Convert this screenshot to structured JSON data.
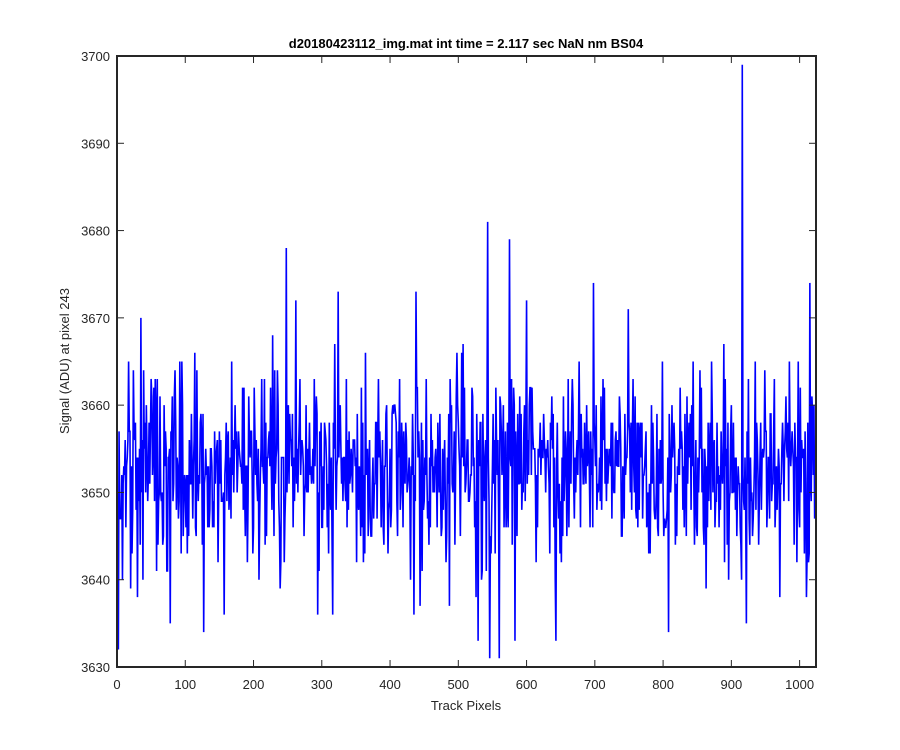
{
  "chart_data": {
    "type": "line",
    "title": "d20180423112_img.mat int time = 2.117 sec  NaN nm BS04",
    "xlabel": "Track Pixels",
    "ylabel": "Signal (ADU) at pixel 243",
    "xlim": [
      0,
      1024
    ],
    "ylim": [
      3630,
      3700
    ],
    "xticks": [
      0,
      100,
      200,
      300,
      400,
      500,
      600,
      700,
      800,
      900,
      1000
    ],
    "yticks": [
      3630,
      3640,
      3650,
      3660,
      3670,
      3680,
      3690,
      3700
    ],
    "grid": false,
    "legend": "none",
    "series": [
      {
        "color": "#0000ff",
        "x_start": 1,
        "x_step": 1,
        "n_points": 1024,
        "mean": 3653,
        "std": 5.5,
        "min": 3631,
        "max": 3699,
        "notable_points": [
          {
            "x": 2,
            "y": 3632
          },
          {
            "x": 30,
            "y": 3638
          },
          {
            "x": 35,
            "y": 3670
          },
          {
            "x": 78,
            "y": 3635
          },
          {
            "x": 127,
            "y": 3634
          },
          {
            "x": 157,
            "y": 3636
          },
          {
            "x": 248,
            "y": 3678
          },
          {
            "x": 262,
            "y": 3672
          },
          {
            "x": 316,
            "y": 3636
          },
          {
            "x": 324,
            "y": 3673
          },
          {
            "x": 435,
            "y": 3636
          },
          {
            "x": 438,
            "y": 3673
          },
          {
            "x": 487,
            "y": 3637
          },
          {
            "x": 529,
            "y": 3633
          },
          {
            "x": 543,
            "y": 3681
          },
          {
            "x": 546,
            "y": 3631
          },
          {
            "x": 560,
            "y": 3631
          },
          {
            "x": 575,
            "y": 3679
          },
          {
            "x": 583,
            "y": 3633
          },
          {
            "x": 600,
            "y": 3672
          },
          {
            "x": 643,
            "y": 3633
          },
          {
            "x": 698,
            "y": 3674
          },
          {
            "x": 808,
            "y": 3634
          },
          {
            "x": 916,
            "y": 3699
          },
          {
            "x": 922,
            "y": 3635
          },
          {
            "x": 1010,
            "y": 3638
          },
          {
            "x": 1015,
            "y": 3674
          }
        ]
      }
    ]
  }
}
